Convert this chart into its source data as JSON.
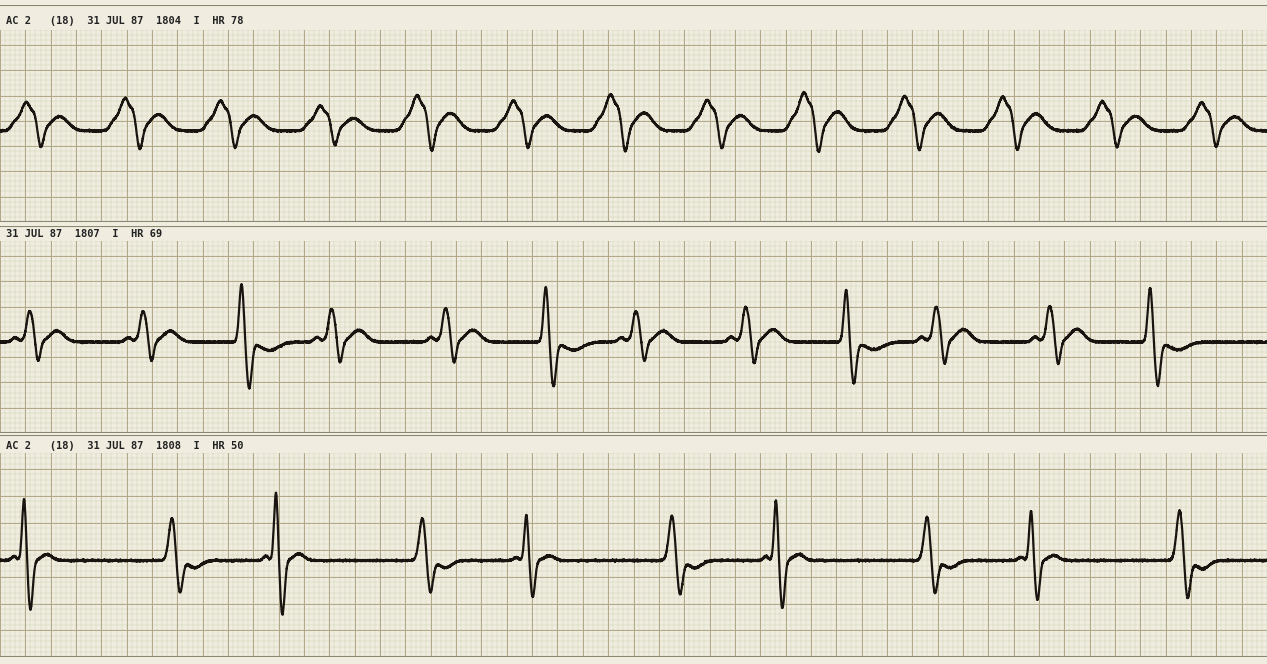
{
  "bg_color": "#f0ede0",
  "grid_minor_color": "#c8c8a8",
  "grid_major_color": "#b0a888",
  "separator_color": "#888870",
  "strip_labels": [
    "AC 2   (18)  31 JUL 87  1804  I  HR 78",
    "31 JUL 87  1807  I  HR 69",
    "AC 2   (18)  31 JUL 87  1808  I  HR 50"
  ],
  "ecg_color": "#1a1410",
  "line_width": 1.6,
  "hrs": [
    78,
    69,
    50
  ],
  "duration": 10.0,
  "ylim": [
    -1.8,
    2.0
  ],
  "baseline": 0.0
}
